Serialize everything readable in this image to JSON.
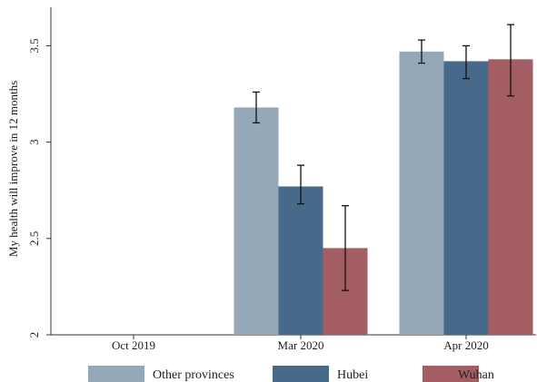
{
  "chart_data": {
    "type": "bar",
    "title": "",
    "xlabel": "",
    "ylabel": "My health will improve in 12 months",
    "categories": [
      "Oct 2019",
      "Mar 2020",
      "Apr 2020"
    ],
    "ylim": [
      2,
      3.7
    ],
    "yticks": [
      2,
      2.5,
      3,
      3.5
    ],
    "ytick_labels": [
      "2",
      "2.5",
      "3",
      "3.5"
    ],
    "grid": false,
    "error_bars": true,
    "legend_position": "bottom",
    "series": [
      {
        "name": "Other provinces",
        "color": "#94a8b9",
        "values": [
          null,
          3.18,
          3.47
        ],
        "err_low": [
          null,
          3.1,
          3.41
        ],
        "err_high": [
          null,
          3.26,
          3.53
        ]
      },
      {
        "name": "Hubei",
        "color": "#476a8a",
        "values": [
          null,
          2.77,
          3.42
        ],
        "err_low": [
          null,
          2.68,
          3.33
        ],
        "err_high": [
          null,
          2.88,
          3.5
        ]
      },
      {
        "name": "Wuhan",
        "color": "#a55d64",
        "values": [
          null,
          2.45,
          3.43
        ],
        "err_low": [
          null,
          2.23,
          3.24
        ],
        "err_high": [
          null,
          2.67,
          3.61
        ]
      }
    ]
  }
}
